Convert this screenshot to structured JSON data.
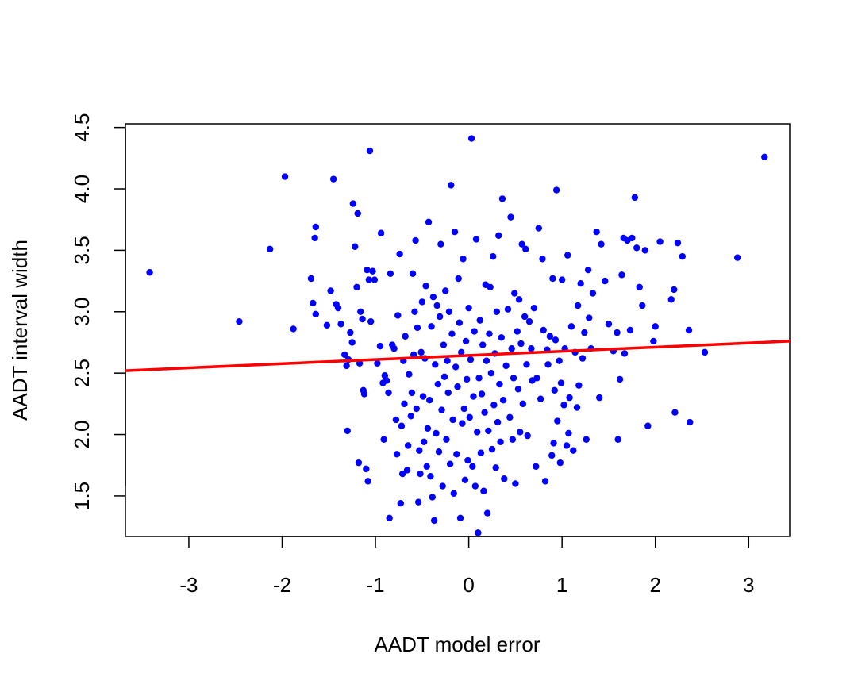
{
  "chart_data": {
    "type": "scatter",
    "title": "",
    "xlabel": "AADT model error",
    "ylabel": "AADT interval width",
    "xlim": [
      -3.68,
      3.44
    ],
    "ylim": [
      1.17,
      4.53
    ],
    "x_ticks": [
      -3,
      -2,
      -1,
      0,
      1,
      2,
      3
    ],
    "x_tick_labels": [
      "-3",
      "-2",
      "-1",
      "0",
      "1",
      "2",
      "3"
    ],
    "y_ticks": [
      1.5,
      2.0,
      2.5,
      3.0,
      3.5,
      4.0,
      4.5
    ],
    "y_tick_labels": [
      "1.5",
      "2.0",
      "2.5",
      "3.0",
      "3.5",
      "4.0",
      "4.5"
    ],
    "grid": false,
    "legend": "none",
    "colors": {
      "points": "#0000ff",
      "fit_line": "#ff0000"
    },
    "fit_line": {
      "x": [
        -3.68,
        3.44
      ],
      "y": [
        2.52,
        2.76
      ]
    },
    "points": [
      [
        -3.42,
        3.32
      ],
      [
        -2.46,
        2.92
      ],
      [
        -2.13,
        3.51
      ],
      [
        -1.97,
        4.1
      ],
      [
        -1.88,
        2.86
      ],
      [
        -1.69,
        3.27
      ],
      [
        -1.67,
        3.07
      ],
      [
        -1.65,
        3.6
      ],
      [
        -1.64,
        3.69
      ],
      [
        -1.64,
        2.98
      ],
      [
        -1.52,
        2.89
      ],
      [
        -1.48,
        3.17
      ],
      [
        -1.45,
        4.08
      ],
      [
        -1.42,
        3.06
      ],
      [
        -1.4,
        3.03
      ],
      [
        -1.37,
        2.9
      ],
      [
        -1.33,
        2.65
      ],
      [
        -1.31,
        2.56
      ],
      [
        -1.3,
        2.03
      ],
      [
        -1.29,
        2.61
      ],
      [
        -1.27,
        2.83
      ],
      [
        -1.25,
        2.75
      ],
      [
        -1.24,
        3.88
      ],
      [
        -1.22,
        3.53
      ],
      [
        -1.2,
        3.2
      ],
      [
        -1.19,
        3.8
      ],
      [
        -1.18,
        1.77
      ],
      [
        -1.17,
        2.58
      ],
      [
        -1.16,
        3.0
      ],
      [
        -1.14,
        2.94
      ],
      [
        -1.13,
        2.36
      ],
      [
        -1.12,
        2.33
      ],
      [
        -1.1,
        1.72
      ],
      [
        -1.09,
        3.34
      ],
      [
        -1.08,
        1.62
      ],
      [
        -1.07,
        3.26
      ],
      [
        -1.06,
        4.31
      ],
      [
        -1.05,
        2.92
      ],
      [
        -1.03,
        3.33
      ],
      [
        -1.01,
        3.26
      ],
      [
        -0.98,
        2.58
      ],
      [
        -0.95,
        2.72
      ],
      [
        -0.94,
        3.64
      ],
      [
        -0.92,
        2.42
      ],
      [
        -0.91,
        1.96
      ],
      [
        -0.9,
        2.48
      ],
      [
        -0.88,
        2.44
      ],
      [
        -0.86,
        2.34
      ],
      [
        -0.85,
        1.32
      ],
      [
        -0.84,
        3.31
      ],
      [
        -0.82,
        2.73
      ],
      [
        -0.8,
        2.7
      ],
      [
        -0.78,
        2.12
      ],
      [
        -0.77,
        1.84
      ],
      [
        -0.76,
        2.97
      ],
      [
        -0.74,
        3.47
      ],
      [
        -0.73,
        1.44
      ],
      [
        -0.72,
        2.07
      ],
      [
        -0.71,
        1.68
      ],
      [
        -0.7,
        2.6
      ],
      [
        -0.69,
        2.25
      ],
      [
        -0.68,
        2.8
      ],
      [
        -0.66,
        1.71
      ],
      [
        -0.65,
        1.91
      ],
      [
        -0.64,
        2.49
      ],
      [
        -0.62,
        2.15
      ],
      [
        -0.61,
        2.34
      ],
      [
        -0.6,
        3.31
      ],
      [
        -0.59,
        2.65
      ],
      [
        -0.58,
        3.0
      ],
      [
        -0.57,
        3.58
      ],
      [
        -0.56,
        2.21
      ],
      [
        -0.55,
        2.87
      ],
      [
        -0.54,
        1.45
      ],
      [
        -0.53,
        1.87
      ],
      [
        -0.52,
        1.68
      ],
      [
        -0.51,
        2.67
      ],
      [
        -0.5,
        3.08
      ],
      [
        -0.49,
        2.31
      ],
      [
        -0.48,
        1.94
      ],
      [
        -0.47,
        2.62
      ],
      [
        -0.46,
        3.21
      ],
      [
        -0.45,
        1.74
      ],
      [
        -0.44,
        2.05
      ],
      [
        -0.43,
        3.73
      ],
      [
        -0.42,
        2.28
      ],
      [
        -0.41,
        1.66
      ],
      [
        -0.4,
        2.88
      ],
      [
        -0.39,
        1.49
      ],
      [
        -0.38,
        3.12
      ],
      [
        -0.37,
        1.3
      ],
      [
        -0.36,
        2.57
      ],
      [
        -0.35,
        2.01
      ],
      [
        -0.34,
        3.05
      ],
      [
        -0.33,
        2.41
      ],
      [
        -0.32,
        1.86
      ],
      [
        -0.31,
        2.96
      ],
      [
        -0.3,
        3.55
      ],
      [
        -0.29,
        2.2
      ],
      [
        -0.28,
        1.58
      ],
      [
        -0.27,
        2.73
      ],
      [
        -0.26,
        2.47
      ],
      [
        -0.25,
        3.17
      ],
      [
        -0.24,
        1.96
      ],
      [
        -0.23,
        2.6
      ],
      [
        -0.22,
        2.34
      ],
      [
        -0.21,
        3.0
      ],
      [
        -0.2,
        1.76
      ],
      [
        -0.19,
        4.03
      ],
      [
        -0.18,
        2.82
      ],
      [
        -0.17,
        2.12
      ],
      [
        -0.16,
        1.52
      ],
      [
        -0.15,
        3.65
      ],
      [
        -0.14,
        2.55
      ],
      [
        -0.13,
        1.84
      ],
      [
        -0.12,
        2.39
      ],
      [
        -0.11,
        3.27
      ],
      [
        -0.1,
        2.91
      ],
      [
        -0.09,
        1.32
      ],
      [
        -0.08,
        2.67
      ],
      [
        -0.07,
        2.09
      ],
      [
        -0.06,
        3.43
      ],
      [
        -0.05,
        2.21
      ],
      [
        -0.04,
        1.63
      ],
      [
        -0.03,
        2.76
      ],
      [
        -0.02,
        2.45
      ],
      [
        -0.01,
        1.79
      ],
      [
        0.0,
        3.03
      ],
      [
        0.01,
        2.14
      ],
      [
        0.02,
        2.61
      ],
      [
        0.03,
        4.41
      ],
      [
        0.04,
        1.74
      ],
      [
        0.05,
        2.31
      ],
      [
        0.06,
        2.84
      ],
      [
        0.07,
        1.58
      ],
      [
        0.08,
        3.59
      ],
      [
        0.09,
        2.02
      ],
      [
        0.1,
        1.2
      ],
      [
        0.11,
        2.46
      ],
      [
        0.12,
        2.93
      ],
      [
        0.13,
        1.85
      ],
      [
        0.14,
        2.33
      ],
      [
        0.15,
        2.73
      ],
      [
        0.16,
        1.54
      ],
      [
        0.17,
        2.18
      ],
      [
        0.18,
        3.22
      ],
      [
        0.19,
        2.6
      ],
      [
        0.2,
        1.36
      ],
      [
        0.21,
        2.03
      ],
      [
        0.22,
        2.82
      ],
      [
        0.23,
        3.2
      ],
      [
        0.24,
        2.5
      ],
      [
        0.25,
        1.88
      ],
      [
        0.26,
        3.45
      ],
      [
        0.27,
        2.24
      ],
      [
        0.28,
        2.66
      ],
      [
        0.29,
        1.73
      ],
      [
        0.3,
        3.0
      ],
      [
        0.31,
        2.1
      ],
      [
        0.32,
        3.62
      ],
      [
        0.33,
        2.41
      ],
      [
        0.34,
        1.94
      ],
      [
        0.35,
        2.79
      ],
      [
        0.36,
        3.92
      ],
      [
        0.37,
        2.28
      ],
      [
        0.38,
        1.64
      ],
      [
        0.4,
        2.56
      ],
      [
        0.42,
        3.02
      ],
      [
        0.44,
        2.14
      ],
      [
        0.45,
        3.77
      ],
      [
        0.46,
        2.7
      ],
      [
        0.47,
        1.96
      ],
      [
        0.48,
        2.46
      ],
      [
        0.49,
        3.15
      ],
      [
        0.5,
        1.6
      ],
      [
        0.52,
        2.84
      ],
      [
        0.53,
        2.37
      ],
      [
        0.54,
        3.1
      ],
      [
        0.55,
        2.02
      ],
      [
        0.56,
        2.74
      ],
      [
        0.57,
        3.55
      ],
      [
        0.58,
        2.25
      ],
      [
        0.6,
        2.96
      ],
      [
        0.61,
        3.51
      ],
      [
        0.62,
        2.57
      ],
      [
        0.63,
        1.99
      ],
      [
        0.65,
        2.92
      ],
      [
        0.67,
        2.7
      ],
      [
        0.68,
        2.44
      ],
      [
        0.7,
        3.03
      ],
      [
        0.72,
        1.74
      ],
      [
        0.73,
        2.46
      ],
      [
        0.75,
        3.68
      ],
      [
        0.77,
        2.29
      ],
      [
        0.79,
        3.43
      ],
      [
        0.8,
        2.85
      ],
      [
        0.82,
        1.62
      ],
      [
        0.84,
        2.69
      ],
      [
        0.85,
        2.57
      ],
      [
        0.87,
        2.8
      ],
      [
        0.89,
        1.83
      ],
      [
        0.9,
        3.27
      ],
      [
        0.91,
        1.93
      ],
      [
        0.92,
        2.36
      ],
      [
        0.93,
        2.77
      ],
      [
        0.94,
        3.99
      ],
      [
        0.95,
        2.11
      ],
      [
        0.97,
        2.6
      ],
      [
        0.98,
        1.77
      ],
      [
        0.99,
        2.42
      ],
      [
        1.0,
        3.26
      ],
      [
        1.02,
        2.24
      ],
      [
        1.03,
        2.7
      ],
      [
        1.05,
        1.91
      ],
      [
        1.06,
        3.46
      ],
      [
        1.07,
        2.01
      ],
      [
        1.08,
        2.3
      ],
      [
        1.1,
        2.88
      ],
      [
        1.12,
        1.87
      ],
      [
        1.14,
        2.67
      ],
      [
        1.16,
        2.22
      ],
      [
        1.17,
        3.05
      ],
      [
        1.18,
        2.4
      ],
      [
        1.2,
        3.23
      ],
      [
        1.22,
        2.62
      ],
      [
        1.24,
        2.83
      ],
      [
        1.26,
        1.96
      ],
      [
        1.28,
        3.34
      ],
      [
        1.29,
        2.95
      ],
      [
        1.31,
        2.7
      ],
      [
        1.33,
        3.15
      ],
      [
        1.37,
        3.65
      ],
      [
        1.4,
        2.3
      ],
      [
        1.42,
        3.55
      ],
      [
        1.46,
        3.25
      ],
      [
        1.5,
        2.9
      ],
      [
        1.55,
        2.68
      ],
      [
        1.59,
        2.83
      ],
      [
        1.6,
        1.96
      ],
      [
        1.62,
        2.45
      ],
      [
        1.64,
        3.3
      ],
      [
        1.66,
        3.6
      ],
      [
        1.67,
        2.66
      ],
      [
        1.7,
        3.58
      ],
      [
        1.73,
        2.85
      ],
      [
        1.75,
        3.6
      ],
      [
        1.78,
        3.93
      ],
      [
        1.8,
        3.52
      ],
      [
        1.83,
        3.2
      ],
      [
        1.86,
        3.05
      ],
      [
        1.89,
        3.5
      ],
      [
        1.92,
        2.07
      ],
      [
        1.98,
        2.76
      ],
      [
        2.0,
        2.88
      ],
      [
        2.05,
        3.57
      ],
      [
        2.17,
        3.1
      ],
      [
        2.2,
        3.18
      ],
      [
        2.21,
        2.18
      ],
      [
        2.24,
        3.56
      ],
      [
        2.29,
        3.45
      ],
      [
        2.36,
        2.85
      ],
      [
        2.37,
        2.1
      ],
      [
        2.53,
        2.67
      ],
      [
        2.88,
        3.44
      ],
      [
        3.17,
        4.26
      ]
    ]
  }
}
